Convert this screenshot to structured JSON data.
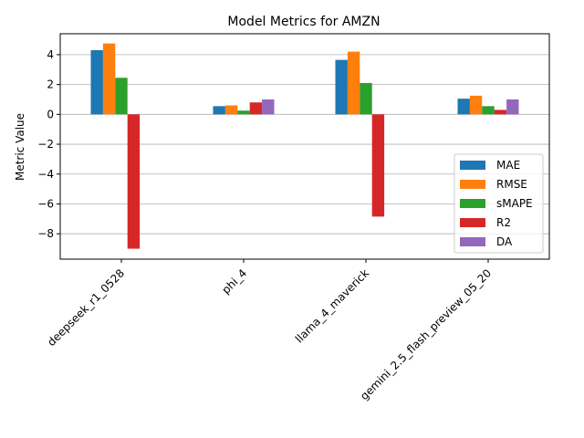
{
  "chart_data": {
    "type": "bar",
    "title": "Model Metrics for AMZN",
    "xlabel": "",
    "ylabel": "Metric Value",
    "ylim": [
      -9.7,
      5.4
    ],
    "yticks": [
      4,
      2,
      0,
      -2,
      -4,
      -6,
      -8
    ],
    "ytick_labels": [
      "4",
      "2",
      "0",
      "−2",
      "−4",
      "−6",
      "−8"
    ],
    "grid": "horizontal",
    "legend_position": "lower-right",
    "categories": [
      "deepseek_r1_0528",
      "phi_4",
      "llama_4_maverick",
      "gemini_2.5_flash_preview_05_20"
    ],
    "series": [
      {
        "name": "MAE",
        "color": "#1f77b4",
        "values": [
          4.3,
          0.55,
          3.65,
          1.05
        ]
      },
      {
        "name": "RMSE",
        "color": "#ff7f0e",
        "values": [
          4.75,
          0.6,
          4.2,
          1.25
        ]
      },
      {
        "name": "sMAPE",
        "color": "#2ca02c",
        "values": [
          2.45,
          0.25,
          2.1,
          0.55
        ]
      },
      {
        "name": "R2",
        "color": "#d62728",
        "values": [
          -9.0,
          0.8,
          -6.85,
          0.3
        ]
      },
      {
        "name": "DA",
        "color": "#9467bd",
        "values": [
          0.0,
          1.0,
          0.0,
          1.0
        ]
      }
    ]
  }
}
